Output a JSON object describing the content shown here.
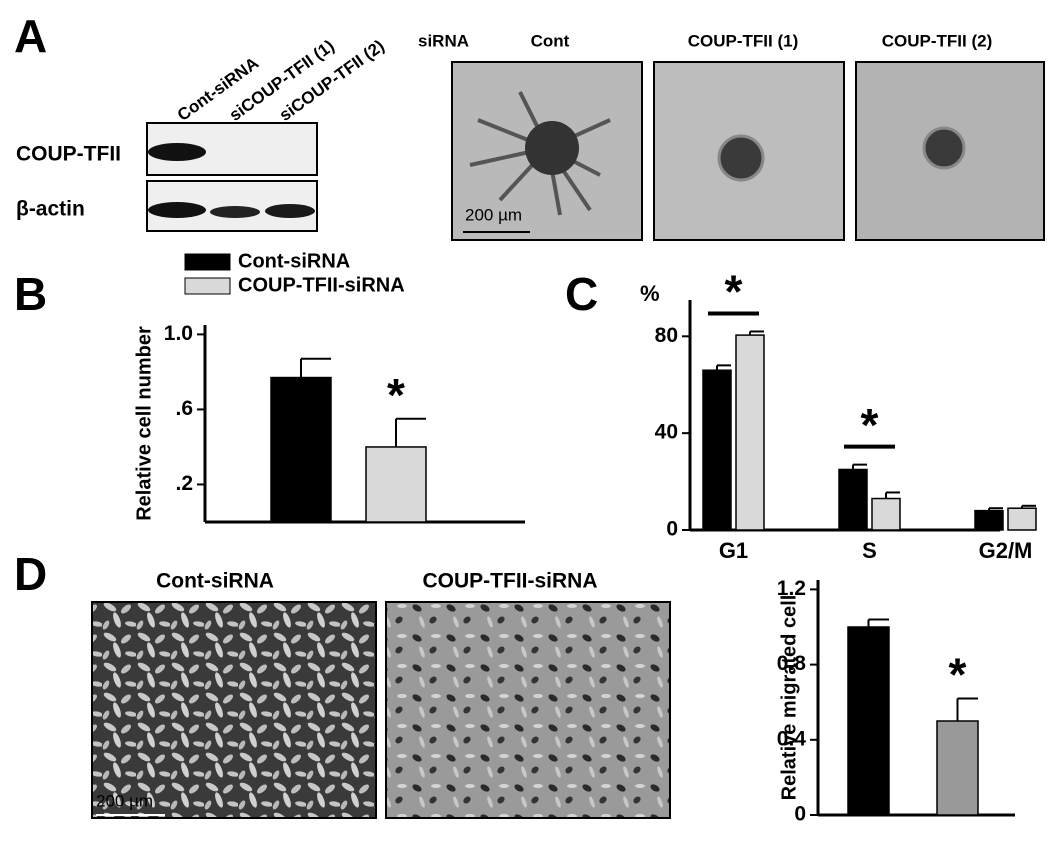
{
  "panel_labels": [
    "A",
    "B",
    "C",
    "D"
  ],
  "blot": {
    "lanes": [
      "Cont-siRNA",
      "siCOUP-TFII (1)",
      "siCOUP-TFII (2)"
    ],
    "rows": [
      "COUP-TFII",
      "β-actin"
    ]
  },
  "spheroids": {
    "label": "siRNA",
    "conditions": [
      "Cont",
      "COUP-TFII (1)",
      "COUP-TFII (2)"
    ],
    "scale_bar": "200 µm"
  },
  "migration_images": {
    "conditions": [
      "Cont-siRNA",
      "COUP-TFII-siRNA"
    ],
    "scale_bar": "200 µm"
  },
  "chart_data": [
    {
      "type": "bar",
      "y_label": "Relative cell number",
      "categories": [
        null
      ],
      "series": [
        {
          "name": "Cont-siRNA",
          "color": "#000000",
          "values": [
            0.77
          ],
          "errors": [
            0.1
          ]
        },
        {
          "name": "COUP-TFII-siRNA",
          "color": "#d9d9d9",
          "values": [
            0.4
          ],
          "errors": [
            0.15
          ]
        }
      ],
      "ylim": [
        0,
        1.05
      ],
      "yticks": [
        {
          "value": 0.2,
          "label": ".2"
        },
        {
          "value": 0.6,
          "label": ".6"
        },
        {
          "value": 1.0,
          "label": "1.0"
        }
      ],
      "annotations": [
        "*"
      ],
      "legend": "top-left"
    },
    {
      "type": "bar",
      "y_label": "%",
      "categories": [
        "G1",
        "S",
        "G2/M"
      ],
      "series": [
        {
          "name": "Cont-siRNA",
          "color": "#000000",
          "values": [
            66,
            25,
            8
          ],
          "errors": [
            2,
            2,
            1
          ]
        },
        {
          "name": "COUP-TFII-siRNA",
          "color": "#d9d9d9",
          "values": [
            80.5,
            13,
            9
          ],
          "errors": [
            1.5,
            2.5,
            1
          ]
        }
      ],
      "ylim": [
        0,
        95
      ],
      "yticks": [
        0,
        40,
        80
      ],
      "annotations": [
        "*",
        "*"
      ]
    },
    {
      "type": "bar",
      "y_label": "Relative migrated cell",
      "categories": [
        null
      ],
      "series": [
        {
          "name": "Cont-siRNA",
          "color": "#000000",
          "values": [
            1.0
          ],
          "errors": [
            0.04
          ]
        },
        {
          "name": "COUP-TFII-siRNA",
          "color": "#999999",
          "values": [
            0.5
          ],
          "errors": [
            0.12
          ]
        }
      ],
      "ylim": [
        0,
        1.25
      ],
      "yticks": [
        0,
        0.4,
        0.8,
        1.2
      ],
      "annotations": [
        "*"
      ]
    }
  ]
}
